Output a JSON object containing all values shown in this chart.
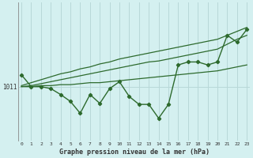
{
  "xlabel": "Graphe pression niveau de la mer (hPa)",
  "bg_color": "#d4f0f0",
  "grid_color": "#b8d8d8",
  "line_color": "#2d6a2d",
  "text_color": "#333333",
  "hours": [
    0,
    1,
    2,
    3,
    4,
    5,
    6,
    7,
    8,
    9,
    10,
    11,
    12,
    13,
    14,
    15,
    16,
    17,
    18,
    19,
    20,
    21,
    22,
    23
  ],
  "pressure": [
    1012.2,
    1011.0,
    1011.0,
    1010.8,
    1010.2,
    1009.5,
    1008.3,
    1010.2,
    1009.3,
    1010.8,
    1011.5,
    1010.0,
    1009.2,
    1009.2,
    1007.8,
    1009.2,
    1013.2,
    1013.5,
    1013.5,
    1013.2,
    1013.5,
    1016.2,
    1015.5,
    1016.8
  ],
  "trend_flat": [
    1011.0,
    1011.0,
    1011.1,
    1011.1,
    1011.2,
    1011.2,
    1011.3,
    1011.4,
    1011.4,
    1011.5,
    1011.6,
    1011.7,
    1011.8,
    1011.9,
    1012.0,
    1012.1,
    1012.2,
    1012.3,
    1012.4,
    1012.5,
    1012.6,
    1012.8,
    1013.0,
    1013.2
  ],
  "trend_mid": [
    1011.0,
    1011.1,
    1011.3,
    1011.5,
    1011.7,
    1011.9,
    1012.1,
    1012.3,
    1012.5,
    1012.7,
    1012.9,
    1013.1,
    1013.3,
    1013.5,
    1013.6,
    1013.8,
    1014.0,
    1014.2,
    1014.4,
    1014.6,
    1014.8,
    1015.3,
    1015.8,
    1016.2
  ],
  "trend_steep": [
    1011.1,
    1011.4,
    1011.7,
    1012.0,
    1012.3,
    1012.5,
    1012.8,
    1013.0,
    1013.3,
    1013.5,
    1013.8,
    1014.0,
    1014.2,
    1014.4,
    1014.6,
    1014.8,
    1015.0,
    1015.2,
    1015.4,
    1015.6,
    1015.8,
    1016.2,
    1016.6,
    1017.0
  ],
  "ylim_min": 1005.5,
  "ylim_max": 1019.5,
  "ytick_val": 1011,
  "figsize": [
    3.2,
    2.0
  ],
  "dpi": 100
}
